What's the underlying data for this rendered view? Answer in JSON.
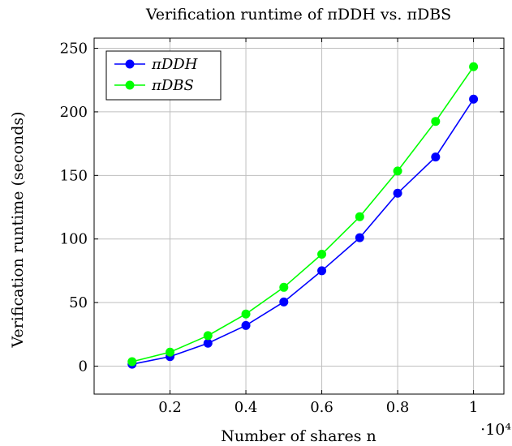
{
  "chart_data": {
    "type": "line",
    "title": "Verification runtime of πDDH vs. πDBS",
    "xlabel": "Number of shares n",
    "ylabel": "Verification runtime (seconds)",
    "x_multiplier": "·10⁴",
    "x": [
      0.1,
      0.2,
      0.3,
      0.4,
      0.5,
      0.6,
      0.7,
      0.8,
      0.9,
      1.0
    ],
    "xlim": [
      0.0,
      1.08
    ],
    "ylim": [
      -22,
      258
    ],
    "x_ticks": [
      0.2,
      0.4,
      0.6,
      0.8,
      1
    ],
    "x_tick_labels": [
      "0.2",
      "0.4",
      "0.6",
      "0.8",
      "1"
    ],
    "y_ticks": [
      0,
      50,
      100,
      150,
      200,
      250
    ],
    "y_tick_labels": [
      "0",
      "50",
      "100",
      "150",
      "200",
      "250"
    ],
    "grid": true,
    "legend_position": "top-left",
    "series": [
      {
        "name": "πDDH",
        "color": "#0000ff",
        "values": [
          1.5,
          7.5,
          18,
          32,
          50.5,
          75,
          101,
          136,
          164.5,
          210
        ]
      },
      {
        "name": "πDBS",
        "color": "#00ff00",
        "values": [
          3.5,
          11,
          24,
          41,
          62,
          88,
          117.5,
          153.5,
          192.5,
          235.5
        ]
      }
    ]
  }
}
